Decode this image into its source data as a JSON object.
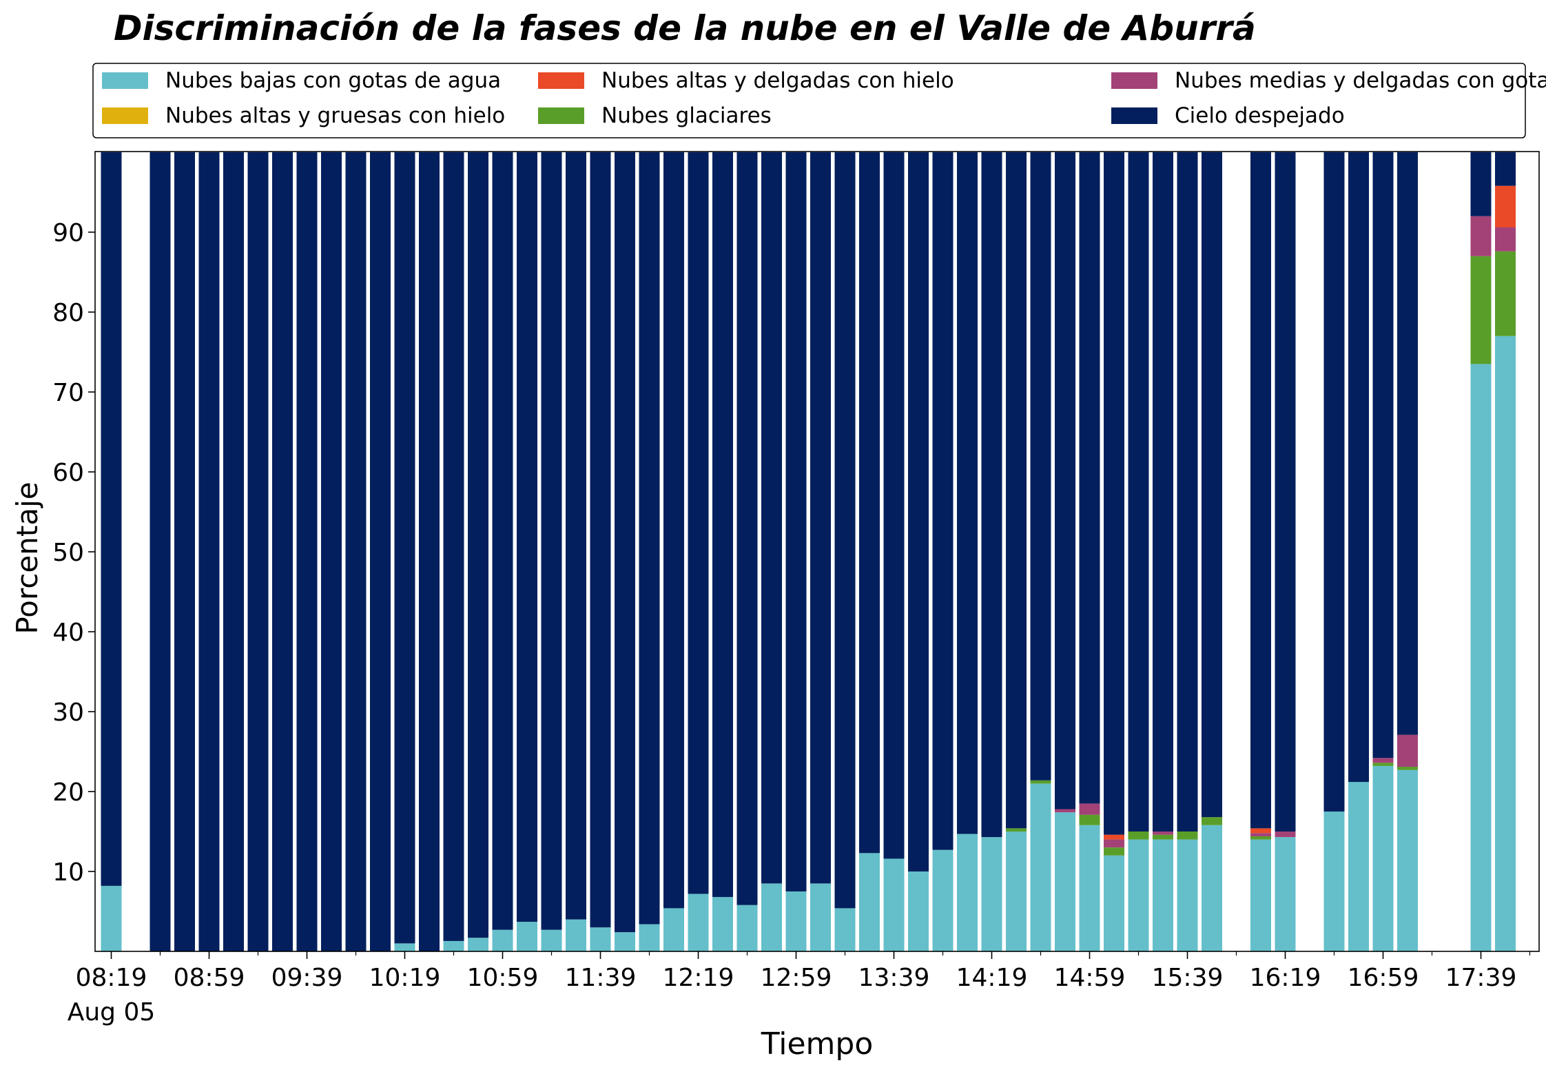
{
  "chart_data": {
    "type": "bar",
    "stacked": true,
    "title": "Discriminación de la fases de la nube en el Valle de Aburrá",
    "xlabel": "Tiempo",
    "ylabel": "Porcentaje",
    "ylim": [
      0,
      100
    ],
    "yticks": [
      10,
      20,
      30,
      40,
      50,
      60,
      70,
      80,
      90
    ],
    "grid": false,
    "legend_placement": "top",
    "x_tick_labels": [
      "08:19",
      "08:59",
      "09:39",
      "10:19",
      "10:59",
      "11:39",
      "12:19",
      "12:59",
      "13:39",
      "14:19",
      "14:59",
      "15:39",
      "16:19",
      "16:59",
      "17:39"
    ],
    "x_date_label": "Aug 05",
    "x": [
      "08:19",
      "08:29",
      "08:39",
      "08:49",
      "08:59",
      "09:09",
      "09:19",
      "09:29",
      "09:39",
      "09:49",
      "09:59",
      "10:09",
      "10:19",
      "10:29",
      "10:39",
      "10:49",
      "10:59",
      "11:09",
      "11:19",
      "11:29",
      "11:39",
      "11:49",
      "11:59",
      "12:09",
      "12:19",
      "12:29",
      "12:39",
      "12:49",
      "12:59",
      "13:09",
      "13:19",
      "13:29",
      "13:39",
      "13:49",
      "13:59",
      "14:09",
      "14:19",
      "14:29",
      "14:39",
      "14:49",
      "14:59",
      "15:09",
      "15:19",
      "15:29",
      "15:39",
      "15:49",
      "15:59",
      "16:09",
      "16:19",
      "16:29",
      "16:39",
      "16:49",
      "16:59",
      "17:09",
      "17:19",
      "17:29",
      "17:39",
      "17:49"
    ],
    "series": [
      {
        "name": "Nubes bajas con gotas de agua",
        "color": "#64BFCA",
        "values": [
          8.2,
          null,
          0,
          0,
          0,
          0,
          0,
          0,
          0,
          0,
          0,
          0,
          1.0,
          0,
          1.3,
          1.7,
          2.7,
          3.7,
          2.7,
          4.0,
          3.0,
          2.4,
          3.4,
          5.4,
          7.2,
          6.8,
          5.8,
          8.5,
          7.5,
          8.5,
          5.4,
          12.3,
          11.6,
          10.0,
          12.7,
          14.7,
          14.3,
          15.0,
          21.0,
          17.4,
          15.8,
          12.0,
          14.0,
          14.0,
          14.0,
          15.8,
          null,
          14.0,
          14.3,
          null,
          17.5,
          21.2,
          23.2,
          22.7,
          null,
          null,
          73.5,
          77.0
        ]
      },
      {
        "name": "Nubes glaciares",
        "color": "#5A9E2A",
        "values": [
          0,
          null,
          0,
          0,
          0,
          0,
          0,
          0,
          0,
          0,
          0,
          0,
          0,
          0,
          0,
          0,
          0,
          0,
          0,
          0,
          0,
          0,
          0,
          0,
          0,
          0,
          0,
          0,
          0,
          0,
          0,
          0,
          0,
          0,
          0,
          0,
          0,
          0.4,
          0.4,
          0,
          1.3,
          1.0,
          1.0,
          0.6,
          1.0,
          1.0,
          null,
          0.4,
          0,
          null,
          0,
          0,
          0.4,
          0.4,
          null,
          null,
          13.5,
          10.6
        ]
      },
      {
        "name": "Nubes altas y gruesas con hielo",
        "color": "#E0B10E",
        "values": [
          0,
          null,
          0,
          0,
          0,
          0,
          0,
          0,
          0,
          0,
          0,
          0,
          0,
          0,
          0,
          0,
          0,
          0,
          0,
          0,
          0,
          0,
          0,
          0,
          0,
          0,
          0,
          0,
          0,
          0,
          0,
          0,
          0,
          0,
          0,
          0,
          0,
          0,
          0,
          0,
          0,
          0,
          0,
          0,
          0,
          0,
          null,
          0,
          0,
          null,
          0,
          0,
          0,
          0,
          null,
          null,
          0,
          0
        ]
      },
      {
        "name": "Nubes medias y delgadas con gotas de agua",
        "color": "#A34277",
        "values": [
          0,
          null,
          0,
          0,
          0,
          0,
          0,
          0,
          0,
          0,
          0,
          0,
          0,
          0,
          0,
          0,
          0,
          0,
          0,
          0,
          0,
          0,
          0,
          0,
          0,
          0,
          0,
          0,
          0,
          0,
          0,
          0,
          0,
          0,
          0,
          0,
          0,
          0,
          0,
          0.4,
          1.4,
          1.0,
          0,
          0.4,
          0,
          0,
          null,
          0.4,
          0.7,
          null,
          0,
          0,
          0.6,
          4.0,
          null,
          null,
          5.0,
          3.0
        ]
      },
      {
        "name": "Nubes altas y delgadas con hielo",
        "color": "#EA4A28",
        "values": [
          0,
          null,
          0,
          0,
          0,
          0,
          0,
          0,
          0,
          0,
          0,
          0,
          0,
          0,
          0,
          0,
          0,
          0,
          0,
          0,
          0,
          0,
          0,
          0,
          0,
          0,
          0,
          0,
          0,
          0,
          0,
          0,
          0,
          0,
          0,
          0,
          0,
          0,
          0,
          0,
          0,
          0.6,
          0,
          0,
          0,
          0,
          null,
          0.6,
          0,
          null,
          0,
          0,
          0,
          0,
          null,
          null,
          0,
          5.2
        ]
      },
      {
        "name": "Cielo despejado",
        "color": "#031F5D",
        "values": [
          91.8,
          null,
          100,
          100,
          100,
          100,
          100,
          100,
          100,
          100,
          100,
          100,
          99.0,
          100,
          98.7,
          98.3,
          97.3,
          96.3,
          97.3,
          96.0,
          97.0,
          97.6,
          96.6,
          94.6,
          92.8,
          93.2,
          94.2,
          91.5,
          92.5,
          91.5,
          94.6,
          87.7,
          88.4,
          90.0,
          87.3,
          85.3,
          85.7,
          84.6,
          78.6,
          82.2,
          81.5,
          85.4,
          85.0,
          85.0,
          85.0,
          83.2,
          null,
          84.6,
          85.0,
          null,
          82.5,
          78.8,
          75.8,
          72.9,
          null,
          null,
          8.0,
          4.2
        ]
      }
    ]
  }
}
